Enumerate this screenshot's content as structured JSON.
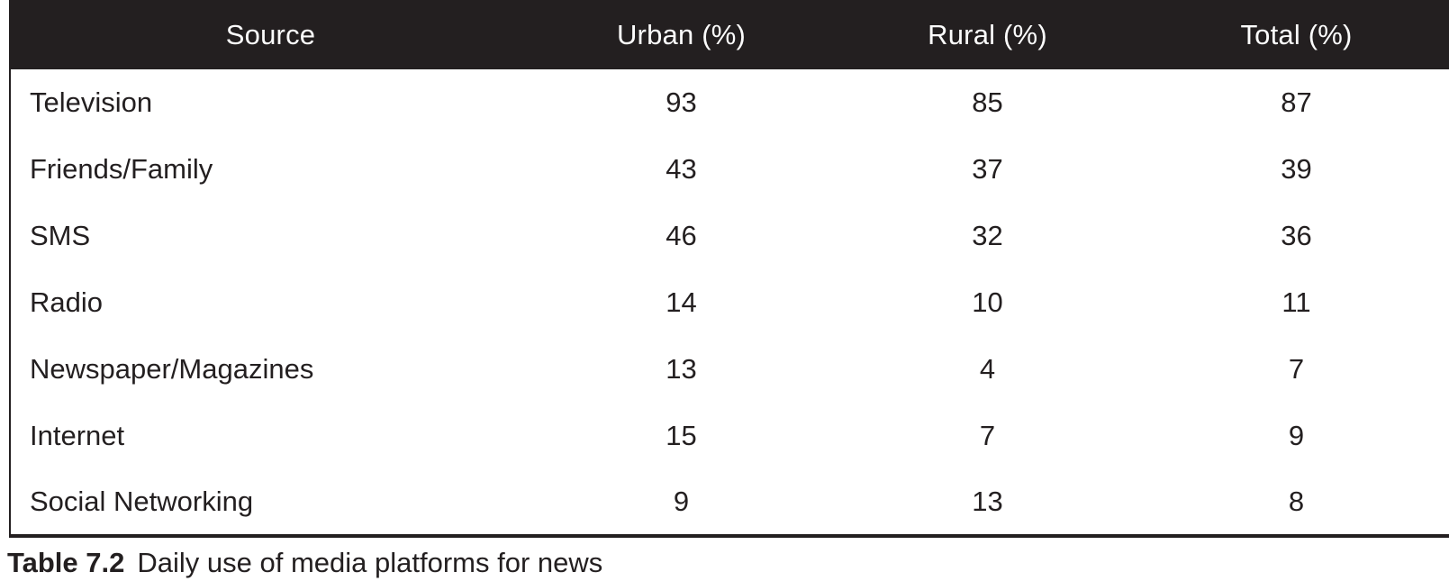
{
  "colors": {
    "header_bg": "#231f20",
    "header_text": "#fcfcfc",
    "body_text": "#231f20",
    "border": "#231f20",
    "page_bg": "#ffffff"
  },
  "table": {
    "columns": [
      "Source",
      "Urban (%)",
      "Rural (%)",
      "Total (%)"
    ],
    "rows": [
      {
        "source": "Television",
        "urban": "93",
        "rural": "85",
        "total": "87"
      },
      {
        "source": "Friends/Family",
        "urban": "43",
        "rural": "37",
        "total": "39"
      },
      {
        "source": "SMS",
        "urban": "46",
        "rural": "32",
        "total": "36"
      },
      {
        "source": "Radio",
        "urban": "14",
        "rural": "10",
        "total": "11"
      },
      {
        "source": "Newspaper/Magazines",
        "urban": "13",
        "rural": "4",
        "total": "7"
      },
      {
        "source": "Internet",
        "urban": "15",
        "rural": "7",
        "total": "9"
      },
      {
        "source": "Social Networking",
        "urban": "9",
        "rural": "13",
        "total": "8"
      }
    ]
  },
  "caption": {
    "label": "Table 7.2",
    "text": "Daily use of media platforms for news"
  },
  "chart_data": {
    "type": "table",
    "title": "Table 7.2 Daily use of media platforms for news",
    "columns": [
      "Source",
      "Urban (%)",
      "Rural (%)",
      "Total (%)"
    ],
    "categories": [
      "Television",
      "Friends/Family",
      "SMS",
      "Radio",
      "Newspaper/Magazines",
      "Internet",
      "Social Networking"
    ],
    "series": [
      {
        "name": "Urban (%)",
        "values": [
          93,
          43,
          46,
          14,
          13,
          15,
          9
        ]
      },
      {
        "name": "Rural (%)",
        "values": [
          85,
          37,
          32,
          10,
          4,
          7,
          13
        ]
      },
      {
        "name": "Total (%)",
        "values": [
          87,
          39,
          36,
          11,
          7,
          9,
          8
        ]
      }
    ]
  }
}
